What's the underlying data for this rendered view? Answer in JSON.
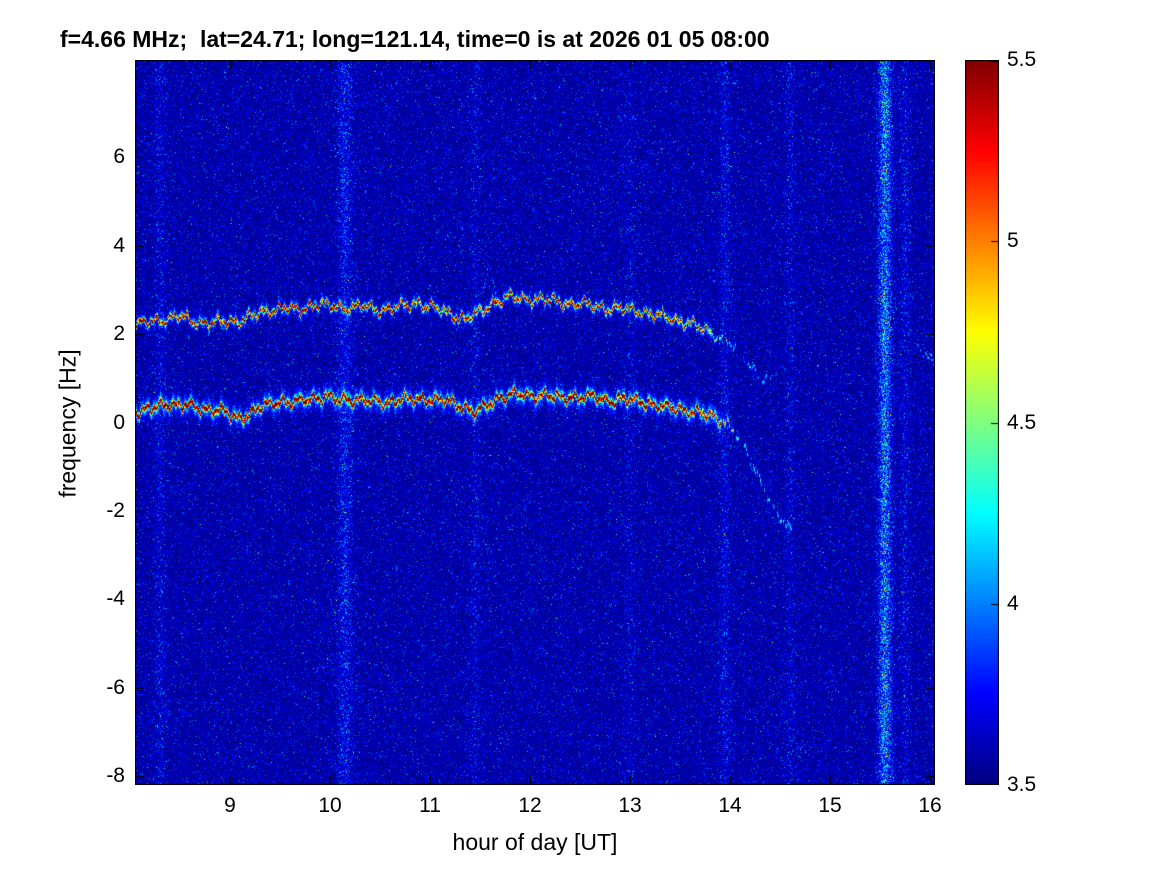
{
  "chart_data": {
    "type": "heatmap",
    "title": "f=4.66 MHz;  lat=24.71; long=121.14, time=0 is at 2026 01 05 08:00",
    "xlabel": "hour of day [UT]",
    "ylabel": "frequency [Hz]",
    "xlim": [
      8.05,
      16.05
    ],
    "ylim": [
      -8.2,
      8.2
    ],
    "x_ticks": [
      9,
      10,
      11,
      12,
      13,
      14,
      15,
      16
    ],
    "y_ticks": [
      6,
      4,
      2,
      0,
      -2,
      -4,
      -6,
      -8
    ],
    "grid": false,
    "colorbar": {
      "colormap": "jet",
      "min": 3.5,
      "max": 5.5,
      "ticks": [
        5.5,
        5,
        4.5,
        4,
        3.5
      ],
      "position": "right"
    },
    "background_level": 3.5,
    "noise_mean_excess": 0.1,
    "vertical_stripes": [
      {
        "hour": 8.3,
        "boost": 0.25,
        "width": 0.05
      },
      {
        "hour": 10.15,
        "boost": 0.45,
        "width": 0.07
      },
      {
        "hour": 11.45,
        "boost": 0.18,
        "width": 0.05
      },
      {
        "hour": 13.0,
        "boost": 0.15,
        "width": 0.05
      },
      {
        "hour": 13.95,
        "boost": 0.28,
        "width": 0.05
      },
      {
        "hour": 14.6,
        "boost": 0.18,
        "width": 0.05
      },
      {
        "hour": 15.55,
        "boost": 1.3,
        "width": 0.06
      },
      {
        "hour": 15.75,
        "boost": 0.25,
        "width": 0.05
      }
    ],
    "series": [
      {
        "name": "doppler-trace-lower",
        "units": {
          "x": "hour UT",
          "y": "Hz",
          "point": "[hour, frequency, intensity]"
        },
        "style": {
          "core": 2.1,
          "coreSigma": 1.7,
          "halo": 0.5,
          "haloSigma": 5.5
        },
        "phase": 0.3,
        "points": [
          [
            8.05,
            0.25,
            1
          ],
          [
            8.2,
            0.3,
            1
          ],
          [
            8.35,
            0.45,
            1
          ],
          [
            8.5,
            0.4,
            1
          ],
          [
            8.65,
            0.35,
            1
          ],
          [
            8.8,
            0.3,
            1
          ],
          [
            8.95,
            0.25,
            1
          ],
          [
            9.05,
            0.1,
            1
          ],
          [
            9.2,
            0.2,
            1
          ],
          [
            9.35,
            0.4,
            1
          ],
          [
            9.5,
            0.5,
            1
          ],
          [
            9.65,
            0.45,
            1
          ],
          [
            9.8,
            0.55,
            1
          ],
          [
            9.95,
            0.6,
            1
          ],
          [
            10.1,
            0.5,
            1
          ],
          [
            10.25,
            0.55,
            1
          ],
          [
            10.4,
            0.5,
            1
          ],
          [
            10.55,
            0.45,
            1
          ],
          [
            10.7,
            0.55,
            1
          ],
          [
            10.85,
            0.5,
            1
          ],
          [
            11.0,
            0.55,
            1
          ],
          [
            11.15,
            0.5,
            1
          ],
          [
            11.3,
            0.4,
            1
          ],
          [
            11.45,
            0.25,
            1
          ],
          [
            11.55,
            0.35,
            1
          ],
          [
            11.7,
            0.6,
            1
          ],
          [
            11.85,
            0.65,
            1
          ],
          [
            12.0,
            0.6,
            1
          ],
          [
            12.15,
            0.65,
            1
          ],
          [
            12.3,
            0.55,
            1
          ],
          [
            12.45,
            0.6,
            1
          ],
          [
            12.6,
            0.6,
            1
          ],
          [
            12.75,
            0.5,
            1
          ],
          [
            12.9,
            0.55,
            1
          ],
          [
            13.05,
            0.5,
            1
          ],
          [
            13.2,
            0.45,
            0.95
          ],
          [
            13.35,
            0.35,
            0.9
          ],
          [
            13.5,
            0.3,
            0.85
          ],
          [
            13.65,
            0.25,
            0.8
          ],
          [
            13.8,
            0.15,
            0.65
          ],
          [
            13.95,
            0.05,
            0.45
          ],
          [
            14.05,
            -0.2,
            0.35
          ],
          [
            14.15,
            -0.6,
            0.32
          ],
          [
            14.25,
            -1.05,
            0.3
          ],
          [
            14.35,
            -1.5,
            0.28
          ],
          [
            14.45,
            -2.0,
            0.28
          ],
          [
            14.55,
            -2.3,
            0.25
          ],
          [
            14.65,
            -2.45,
            0.22
          ]
        ]
      },
      {
        "name": "doppler-trace-upper",
        "units": {
          "x": "hour UT",
          "y": "Hz",
          "point": "[hour, frequency, intensity]"
        },
        "style": {
          "core": 1.85,
          "coreSigma": 1.45,
          "halo": 0.38,
          "haloSigma": 3.8
        },
        "phase": 2.1,
        "points": [
          [
            8.05,
            2.2,
            0.95
          ],
          [
            8.2,
            2.3,
            0.95
          ],
          [
            8.35,
            2.35,
            0.95
          ],
          [
            8.5,
            2.4,
            0.9
          ],
          [
            8.65,
            2.3,
            0.95
          ],
          [
            8.8,
            2.25,
            0.9
          ],
          [
            8.95,
            2.3,
            0.95
          ],
          [
            9.1,
            2.3,
            0.9
          ],
          [
            9.25,
            2.45,
            0.95
          ],
          [
            9.4,
            2.55,
            0.9
          ],
          [
            9.55,
            2.6,
            0.95
          ],
          [
            9.7,
            2.55,
            0.9
          ],
          [
            9.85,
            2.7,
            0.95
          ],
          [
            10.0,
            2.65,
            0.9
          ],
          [
            10.15,
            2.6,
            0.95
          ],
          [
            10.3,
            2.65,
            0.9
          ],
          [
            10.45,
            2.55,
            0.9
          ],
          [
            10.6,
            2.6,
            0.95
          ],
          [
            10.75,
            2.65,
            0.9
          ],
          [
            10.9,
            2.7,
            0.9
          ],
          [
            11.05,
            2.6,
            0.9
          ],
          [
            11.2,
            2.45,
            0.9
          ],
          [
            11.35,
            2.35,
            0.85
          ],
          [
            11.5,
            2.5,
            0.85
          ],
          [
            11.65,
            2.75,
            0.9
          ],
          [
            11.8,
            2.85,
            0.95
          ],
          [
            11.95,
            2.8,
            0.9
          ],
          [
            12.1,
            2.8,
            0.9
          ],
          [
            12.25,
            2.75,
            0.9
          ],
          [
            12.4,
            2.7,
            0.9
          ],
          [
            12.55,
            2.7,
            0.9
          ],
          [
            12.7,
            2.6,
            0.85
          ],
          [
            12.85,
            2.6,
            0.85
          ],
          [
            13.0,
            2.55,
            0.85
          ],
          [
            13.15,
            2.5,
            0.8
          ],
          [
            13.3,
            2.4,
            0.8
          ],
          [
            13.45,
            2.35,
            0.75
          ],
          [
            13.6,
            2.25,
            0.65
          ],
          [
            13.75,
            2.1,
            0.55
          ],
          [
            13.9,
            1.95,
            0.45
          ],
          [
            14.0,
            1.8,
            0.35
          ],
          [
            14.1,
            1.6,
            0.3
          ],
          [
            14.2,
            1.3,
            0.3
          ],
          [
            14.3,
            1.05,
            0.28
          ],
          [
            14.4,
            0.95,
            0.25
          ]
        ]
      },
      {
        "name": "spike-above-upper-trace",
        "units": {
          "x": "hour UT",
          "y": "Hz",
          "point": "[hour, frequency, intensity]"
        },
        "style": {
          "core": 1.6,
          "coreSigma": 1.1,
          "halo": 0.15,
          "haloSigma": 2.5
        },
        "phase": 4.0,
        "points": [
          [
            11.48,
            2.7,
            0.3
          ],
          [
            11.55,
            3.25,
            0.26
          ],
          [
            11.6,
            3.55,
            0.2
          ],
          [
            11.66,
            2.95,
            0.28
          ]
        ]
      },
      {
        "name": "right-edge-wisp",
        "units": {
          "x": "hour UT",
          "y": "Hz",
          "point": "[hour, frequency, intensity]"
        },
        "style": {
          "core": 1.8,
          "coreSigma": 1.2,
          "halo": 0.12,
          "haloSigma": 2.5
        },
        "phase": 5.2,
        "points": [
          [
            15.85,
            1.8,
            0.32
          ],
          [
            15.95,
            1.6,
            0.32
          ],
          [
            16.05,
            1.3,
            0.3
          ]
        ]
      }
    ]
  }
}
